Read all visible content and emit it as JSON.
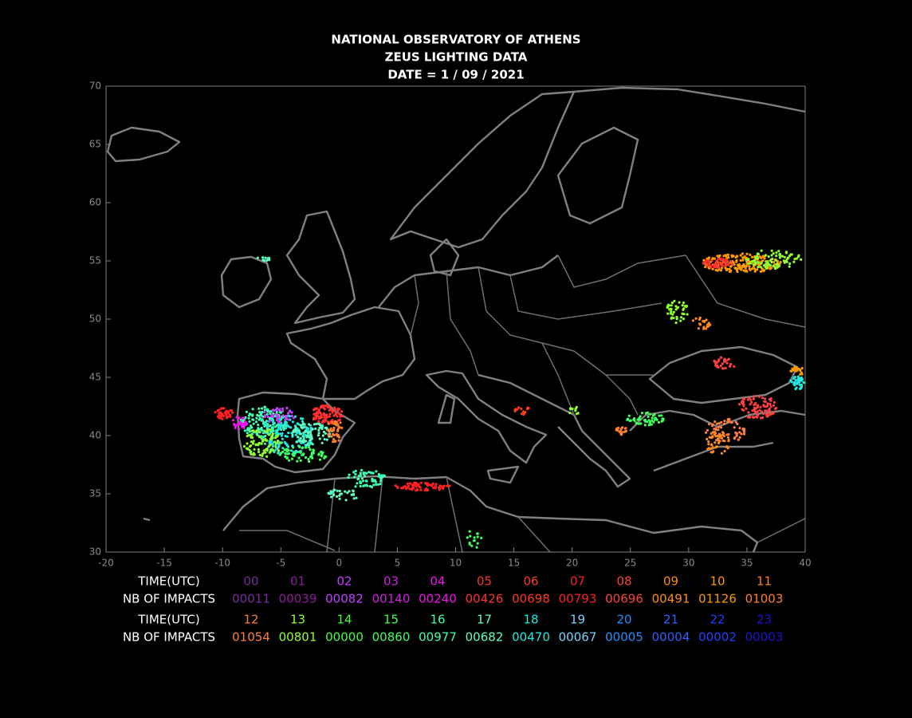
{
  "header": {
    "title": [
      "NATIONAL OBSERVATORY OF ATHENS",
      "ZEUS LIGHTING DATA",
      "DATE = 1 / 09 / 2021"
    ]
  },
  "map": {
    "xlim": [
      -20,
      40
    ],
    "ylim": [
      30,
      70
    ],
    "xticks": [
      -20,
      -15,
      -10,
      -5,
      0,
      5,
      10,
      15,
      20,
      25,
      30,
      35,
      40
    ],
    "yticks": [
      30,
      35,
      40,
      45,
      50,
      55,
      60,
      65,
      70
    ]
  },
  "legend": {
    "time_label": "TIME(UTC)",
    "impacts_label": "NB OF IMPACTS",
    "hours": [
      {
        "hour": "00",
        "impacts": "00011",
        "color": "#7a2a9c"
      },
      {
        "hour": "01",
        "impacts": "00039",
        "color": "#8e1a9a"
      },
      {
        "hour": "02",
        "impacts": "00082",
        "color": "#c040ff"
      },
      {
        "hour": "03",
        "impacts": "00140",
        "color": "#d020e0"
      },
      {
        "hour": "04",
        "impacts": "00240",
        "color": "#f010f0"
      },
      {
        "hour": "05",
        "impacts": "00426",
        "color": "#ff3030"
      },
      {
        "hour": "06",
        "impacts": "00698",
        "color": "#ff3a20"
      },
      {
        "hour": "07",
        "impacts": "00793",
        "color": "#ff2020"
      },
      {
        "hour": "08",
        "impacts": "00696",
        "color": "#ff4040"
      },
      {
        "hour": "09",
        "impacts": "00491",
        "color": "#ff8c1a"
      },
      {
        "hour": "10",
        "impacts": "01126",
        "color": "#ff9900"
      },
      {
        "hour": "11",
        "impacts": "01003",
        "color": "#ff7f2a"
      },
      {
        "hour": "12",
        "impacts": "01054",
        "color": "#ff7f3f"
      },
      {
        "hour": "13",
        "impacts": "00801",
        "color": "#90ff30"
      },
      {
        "hour": "14",
        "impacts": "00000",
        "color": "#40ff40"
      },
      {
        "hour": "15",
        "impacts": "00860",
        "color": "#40ff60"
      },
      {
        "hour": "16",
        "impacts": "00977",
        "color": "#40ffb0"
      },
      {
        "hour": "17",
        "impacts": "00682",
        "color": "#60ffc0"
      },
      {
        "hour": "18",
        "impacts": "00470",
        "color": "#20e8e0"
      },
      {
        "hour": "19",
        "impacts": "00067",
        "color": "#80d0ff"
      },
      {
        "hour": "20",
        "impacts": "00005",
        "color": "#2090ff"
      },
      {
        "hour": "21",
        "impacts": "00004",
        "color": "#3060ff"
      },
      {
        "hour": "22",
        "impacts": "00002",
        "color": "#2040ff"
      },
      {
        "hour": "23",
        "impacts": "00003",
        "color": "#2010d0"
      }
    ]
  }
}
